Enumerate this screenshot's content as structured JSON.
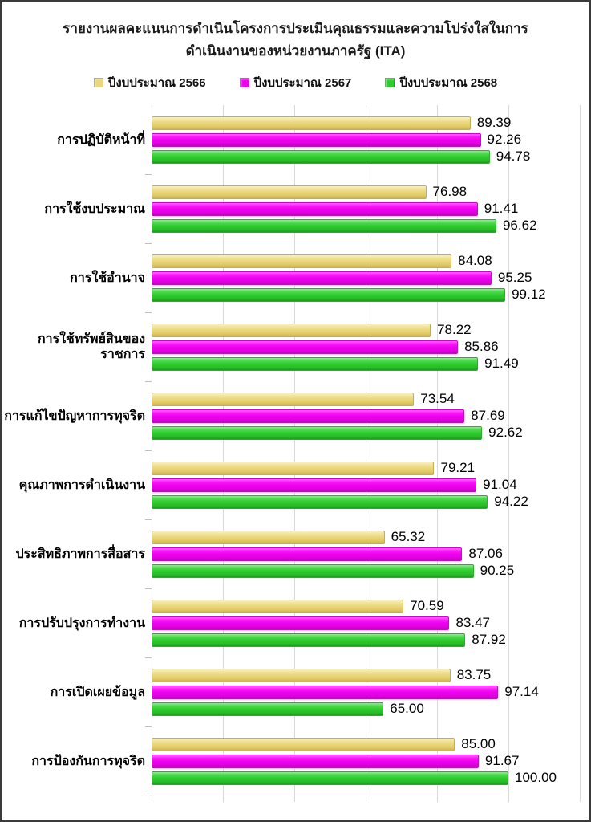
{
  "title": {
    "line1": "รายงานผลคะแนนการดำเนินโครงการประเมินคุณธรรมและความโปร่งใสในการ",
    "line2": "ดำเนินงานของหน่วยงานภาครัฐ (ITA)"
  },
  "legend": {
    "position": "top",
    "items": [
      {
        "label": "ปีงบประมาณ 2566",
        "color": "#e9d77b"
      },
      {
        "label": "ปีงบประมาณ 2567",
        "color": "#ee00ee"
      },
      {
        "label": "ปีงบประมาณ 2568",
        "color": "#2ecc2e"
      }
    ]
  },
  "chart_data": {
    "type": "bar",
    "orientation": "horizontal",
    "title": "รายงานผลคะแนนการดำเนินโครงการประเมินคุณธรรมและความโปร่งใสในการดำเนินงานของหน่วยงานภาครัฐ (ITA)",
    "categories": [
      "การปฏิบัติหน้าที่",
      "การใช้งบประมาณ",
      "การใช้อำนาจ",
      "การใช้ทรัพย์สินของราชการ",
      "การแก้ไขปัญหาการทุจริต",
      "คุณภาพการดำเนินงาน",
      "ประสิทธิภาพการสื่อสาร",
      "การปรับปรุงการทำงาน",
      "การเปิดเผยข้อมูล",
      "การป้องกันการทุจริต"
    ],
    "series": [
      {
        "name": "ปีงบประมาณ 2566",
        "color": "#e9d77b",
        "values": [
          89.39,
          76.98,
          84.08,
          78.22,
          73.54,
          79.21,
          65.32,
          70.59,
          83.75,
          85.0
        ]
      },
      {
        "name": "ปีงบประมาณ 2567",
        "color": "#ee00ee",
        "values": [
          92.26,
          91.41,
          95.25,
          85.86,
          87.69,
          91.04,
          87.06,
          83.47,
          97.14,
          91.67
        ]
      },
      {
        "name": "ปีงบประมาณ 2568",
        "color": "#2ecc2e",
        "values": [
          94.78,
          96.62,
          99.12,
          91.49,
          92.62,
          94.22,
          90.25,
          87.92,
          65.0,
          100.0
        ]
      }
    ],
    "xlabel": "",
    "ylabel": "",
    "xlim": [
      0,
      120
    ],
    "gridline_interval": 20,
    "grid": true,
    "value_labels": true,
    "value_label_format": "0.00",
    "legend_position": "top"
  }
}
